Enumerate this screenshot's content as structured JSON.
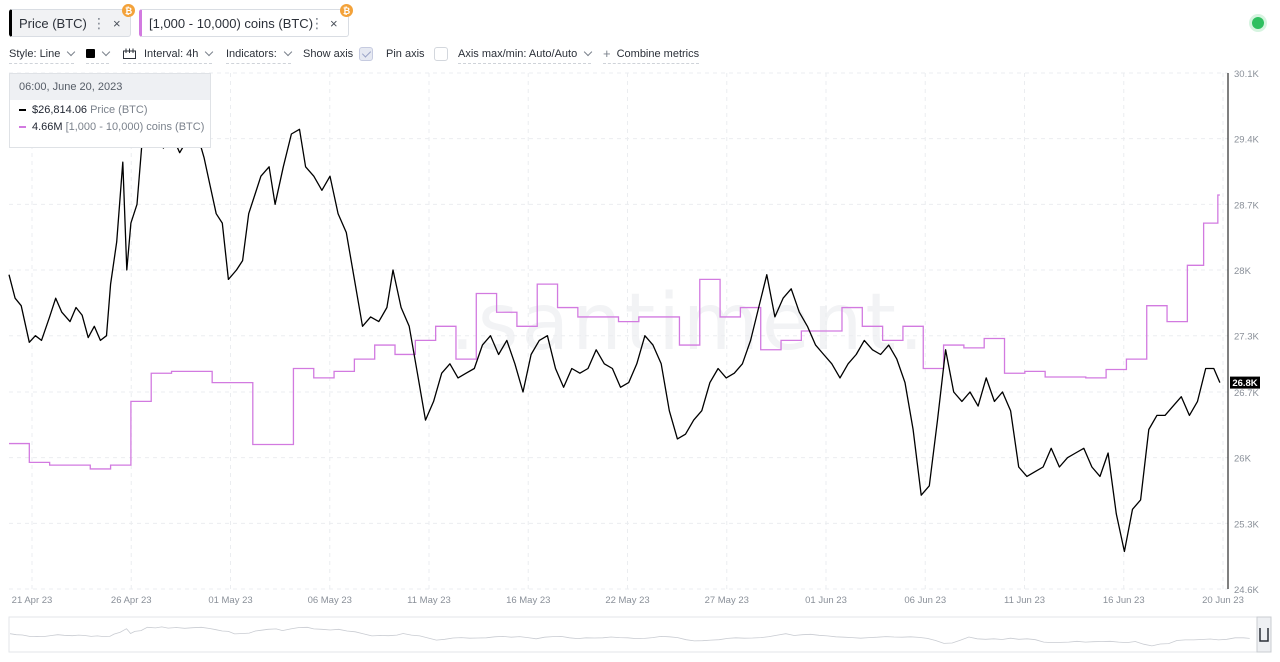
{
  "metrics": [
    {
      "label": "Price (BTC)",
      "badge": "₿",
      "close": "×",
      "more": "⋮",
      "color": "#000000"
    },
    {
      "label": "[1,000 - 10,000) coins (BTC)",
      "badge": "₿",
      "close": "×",
      "more": "⋮",
      "color": "#d27ae0"
    }
  ],
  "toolbar": {
    "style": "Style: Line",
    "interval": "Interval: 4h",
    "indicators": "Indicators:",
    "show_axis": "Show axis",
    "show_axis_checked": true,
    "pin_axis": "Pin axis",
    "pin_axis_checked": false,
    "axis_maxmin": "Axis max/min: Auto/Auto",
    "combine": "Combine metrics",
    "combine_icon": "plus-icon"
  },
  "tooltip": {
    "date": "06:00, June 20, 2023",
    "rows": [
      {
        "value": "$26,814.06",
        "name": "Price (BTC)",
        "color": "#000000"
      },
      {
        "value": "4.66M",
        "name": "[1,000 - 10,000) coins (BTC)",
        "color": "#d27ae0"
      }
    ]
  },
  "watermark": ".santiment.",
  "chart_data": {
    "type": "line",
    "x_tick_labels": [
      "21 Apr 23",
      "26 Apr 23",
      "01 May 23",
      "06 May 23",
      "11 May 23",
      "16 May 23",
      "22 May 23",
      "27 May 23",
      "01 Jun 23",
      "06 Jun 23",
      "11 Jun 23",
      "16 Jun 23",
      "20 Jun 23"
    ],
    "y_tick_labels": [
      "30.1K",
      "29.4K",
      "28.7K",
      "28K",
      "27.3K",
      "26.7K",
      "26K",
      "25.3K",
      "24.6K"
    ],
    "y_ticks": [
      30100,
      29400,
      28700,
      28000,
      27300,
      26700,
      26000,
      25300,
      24600
    ],
    "ylim": [
      24600,
      30100
    ],
    "xlim_days": [
      0,
      60
    ],
    "current_price_label": "26.8K",
    "current_price_value": 26800,
    "grid": true,
    "series": [
      {
        "name": "Price (BTC)",
        "color": "#000000",
        "points": [
          [
            0.0,
            27950
          ],
          [
            0.3,
            27700
          ],
          [
            0.6,
            27620
          ],
          [
            1.0,
            27230
          ],
          [
            1.3,
            27300
          ],
          [
            1.6,
            27250
          ],
          [
            2.0,
            27500
          ],
          [
            2.3,
            27700
          ],
          [
            2.6,
            27550
          ],
          [
            3.0,
            27450
          ],
          [
            3.3,
            27600
          ],
          [
            3.6,
            27520
          ],
          [
            3.9,
            27280
          ],
          [
            4.2,
            27400
          ],
          [
            4.5,
            27250
          ],
          [
            4.8,
            27300
          ],
          [
            5.0,
            27850
          ],
          [
            5.3,
            28300
          ],
          [
            5.6,
            29150
          ],
          [
            5.8,
            28000
          ],
          [
            6.0,
            28500
          ],
          [
            6.3,
            28700
          ],
          [
            6.6,
            29500
          ],
          [
            7.0,
            29350
          ],
          [
            7.3,
            29600
          ],
          [
            7.6,
            29300
          ],
          [
            8.0,
            29450
          ],
          [
            8.4,
            29250
          ],
          [
            8.8,
            29400
          ],
          [
            9.2,
            29500
          ],
          [
            9.6,
            29200
          ],
          [
            9.9,
            28900
          ],
          [
            10.2,
            28600
          ],
          [
            10.5,
            28500
          ],
          [
            10.8,
            27900
          ],
          [
            11.2,
            28000
          ],
          [
            11.5,
            28100
          ],
          [
            11.8,
            28600
          ],
          [
            12.1,
            28800
          ],
          [
            12.4,
            29000
          ],
          [
            12.8,
            29100
          ],
          [
            13.1,
            28700
          ],
          [
            13.5,
            29100
          ],
          [
            13.9,
            29450
          ],
          [
            14.3,
            29500
          ],
          [
            14.6,
            29100
          ],
          [
            15.0,
            29000
          ],
          [
            15.4,
            28850
          ],
          [
            15.8,
            29000
          ],
          [
            16.2,
            28600
          ],
          [
            16.6,
            28400
          ],
          [
            17.0,
            27900
          ],
          [
            17.4,
            27400
          ],
          [
            17.8,
            27500
          ],
          [
            18.2,
            27450
          ],
          [
            18.6,
            27600
          ],
          [
            18.9,
            28000
          ],
          [
            19.3,
            27600
          ],
          [
            19.7,
            27400
          ],
          [
            20.1,
            26900
          ],
          [
            20.5,
            26400
          ],
          [
            20.9,
            26600
          ],
          [
            21.3,
            26900
          ],
          [
            21.7,
            27000
          ],
          [
            22.1,
            26850
          ],
          [
            22.5,
            26900
          ],
          [
            22.9,
            26950
          ],
          [
            23.3,
            27200
          ],
          [
            23.7,
            27300
          ],
          [
            24.1,
            27100
          ],
          [
            24.5,
            27250
          ],
          [
            24.9,
            27000
          ],
          [
            25.3,
            26700
          ],
          [
            25.7,
            27100
          ],
          [
            26.1,
            27250
          ],
          [
            26.5,
            27300
          ],
          [
            26.9,
            26950
          ],
          [
            27.3,
            26750
          ],
          [
            27.7,
            26950
          ],
          [
            28.1,
            26900
          ],
          [
            28.5,
            26950
          ],
          [
            28.9,
            27150
          ],
          [
            29.3,
            27000
          ],
          [
            29.7,
            26950
          ],
          [
            30.1,
            26750
          ],
          [
            30.5,
            26800
          ],
          [
            30.9,
            27000
          ],
          [
            31.3,
            27300
          ],
          [
            31.7,
            27200
          ],
          [
            32.1,
            27000
          ],
          [
            32.5,
            26500
          ],
          [
            32.9,
            26200
          ],
          [
            33.3,
            26250
          ],
          [
            33.7,
            26400
          ],
          [
            34.1,
            26500
          ],
          [
            34.5,
            26800
          ],
          [
            34.9,
            26950
          ],
          [
            35.3,
            26850
          ],
          [
            35.7,
            26900
          ],
          [
            36.1,
            27000
          ],
          [
            36.5,
            27250
          ],
          [
            36.9,
            27600
          ],
          [
            37.3,
            27950
          ],
          [
            37.7,
            27500
          ],
          [
            38.1,
            27700
          ],
          [
            38.5,
            27800
          ],
          [
            38.9,
            27550
          ],
          [
            39.3,
            27400
          ],
          [
            39.7,
            27200
          ],
          [
            40.1,
            27100
          ],
          [
            40.5,
            27000
          ],
          [
            40.9,
            26850
          ],
          [
            41.3,
            27000
          ],
          [
            41.7,
            27100
          ],
          [
            42.1,
            27250
          ],
          [
            42.5,
            27150
          ],
          [
            42.9,
            27100
          ],
          [
            43.3,
            27200
          ],
          [
            43.7,
            27050
          ],
          [
            44.1,
            26800
          ],
          [
            44.5,
            26300
          ],
          [
            44.9,
            25600
          ],
          [
            45.3,
            25700
          ],
          [
            45.7,
            26400
          ],
          [
            46.1,
            27150
          ],
          [
            46.5,
            26700
          ],
          [
            46.9,
            26600
          ],
          [
            47.3,
            26700
          ],
          [
            47.7,
            26550
          ],
          [
            48.1,
            26850
          ],
          [
            48.5,
            26600
          ],
          [
            48.9,
            26700
          ],
          [
            49.3,
            26500
          ],
          [
            49.7,
            25900
          ],
          [
            50.1,
            25800
          ],
          [
            50.5,
            25850
          ],
          [
            50.9,
            25900
          ],
          [
            51.3,
            26100
          ],
          [
            51.7,
            25900
          ],
          [
            52.1,
            26000
          ],
          [
            52.5,
            26050
          ],
          [
            52.9,
            26100
          ],
          [
            53.3,
            25900
          ],
          [
            53.7,
            25800
          ],
          [
            54.1,
            26050
          ],
          [
            54.5,
            25400
          ],
          [
            54.9,
            25000
          ],
          [
            55.3,
            25450
          ],
          [
            55.7,
            25550
          ],
          [
            56.1,
            26300
          ],
          [
            56.5,
            26450
          ],
          [
            56.9,
            26450
          ],
          [
            57.3,
            26550
          ],
          [
            57.7,
            26650
          ],
          [
            58.1,
            26450
          ],
          [
            58.5,
            26600
          ],
          [
            58.9,
            26950
          ],
          [
            59.3,
            26950
          ],
          [
            59.6,
            26800
          ]
        ]
      },
      {
        "name": "[1,000 - 10,000) coins (BTC)",
        "color": "#d27ae0",
        "steps": [
          [
            0.0,
            26150
          ],
          [
            1.0,
            25950
          ],
          [
            2.0,
            25920
          ],
          [
            4.0,
            25880
          ],
          [
            5.0,
            25920
          ],
          [
            6.0,
            26600
          ],
          [
            7.0,
            26900
          ],
          [
            8.0,
            26920
          ],
          [
            10.0,
            26800
          ],
          [
            12.0,
            26140
          ],
          [
            14.0,
            26950
          ],
          [
            15.0,
            26850
          ],
          [
            16.0,
            26920
          ],
          [
            17.0,
            27050
          ],
          [
            18.0,
            27200
          ],
          [
            19.0,
            27100
          ],
          [
            20.0,
            27250
          ],
          [
            21.0,
            27400
          ],
          [
            22.0,
            27050
          ],
          [
            23.0,
            27750
          ],
          [
            24.0,
            27550
          ],
          [
            25.0,
            27400
          ],
          [
            26.0,
            27850
          ],
          [
            27.0,
            27600
          ],
          [
            28.0,
            27500
          ],
          [
            29.0,
            27500
          ],
          [
            30.0,
            27450
          ],
          [
            31.0,
            27500
          ],
          [
            32.0,
            27500
          ],
          [
            33.0,
            27200
          ],
          [
            34.0,
            27900
          ],
          [
            35.0,
            27500
          ],
          [
            36.0,
            27600
          ],
          [
            37.0,
            27150
          ],
          [
            38.0,
            27250
          ],
          [
            39.0,
            27350
          ],
          [
            40.0,
            27350
          ],
          [
            41.0,
            27600
          ],
          [
            42.0,
            27400
          ],
          [
            43.0,
            27250
          ],
          [
            44.0,
            27400
          ],
          [
            45.0,
            26950
          ],
          [
            46.0,
            27200
          ],
          [
            47.0,
            27170
          ],
          [
            48.0,
            27270
          ],
          [
            49.0,
            26900
          ],
          [
            50.0,
            26920
          ],
          [
            51.0,
            26860
          ],
          [
            53.0,
            26850
          ],
          [
            54.0,
            26940
          ],
          [
            55.0,
            27050
          ],
          [
            56.0,
            27620
          ],
          [
            57.0,
            27450
          ],
          [
            58.0,
            28050
          ],
          [
            58.8,
            28500
          ],
          [
            59.5,
            28800
          ]
        ]
      }
    ]
  }
}
